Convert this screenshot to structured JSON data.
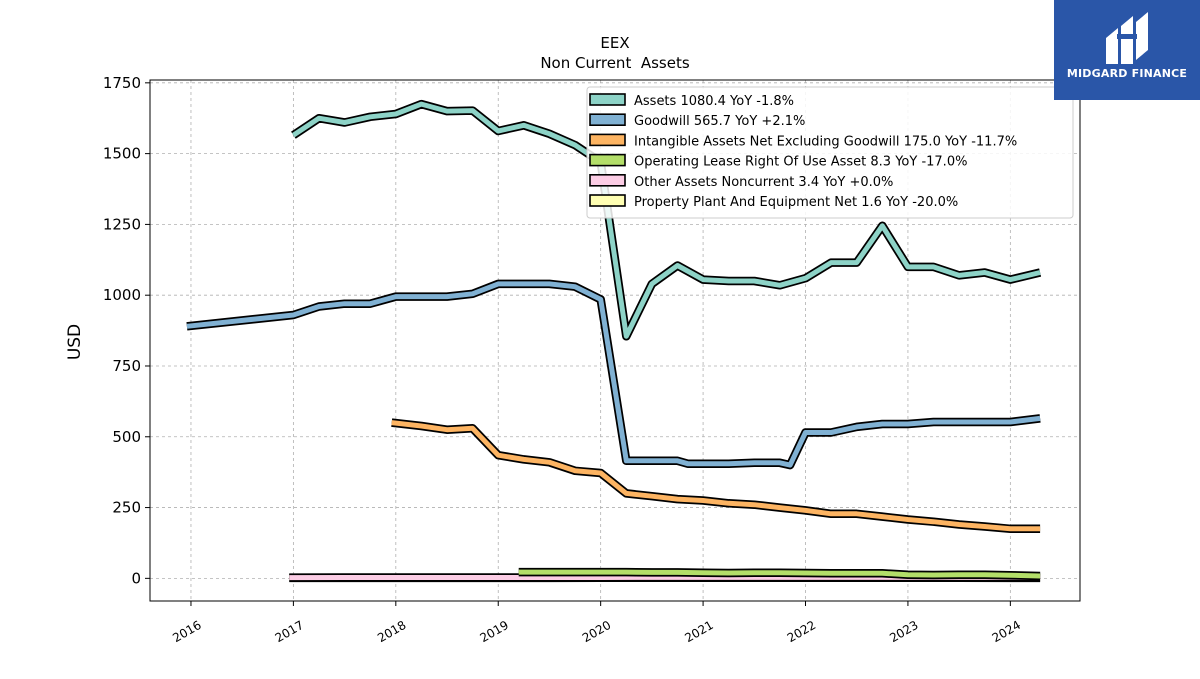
{
  "chart_data": {
    "type": "line",
    "title": "EEX",
    "subtitle": "Non Current  Assets",
    "ylabel": "USD",
    "xlabel": "",
    "ylim": [
      -80,
      1760
    ],
    "xlim": [
      2015.6,
      2024.68
    ],
    "yticks": [
      0,
      250,
      500,
      750,
      1000,
      1250,
      1500,
      1750
    ],
    "ytick_labels": [
      "0",
      "250",
      "500",
      "750",
      "1000",
      "1250",
      "1500",
      "1750"
    ],
    "xticks": [
      2016,
      2017,
      2018,
      2019,
      2020,
      2021,
      2022,
      2023,
      2024
    ],
    "xtick_labels": [
      "2016",
      "2017",
      "2018",
      "2019",
      "2020",
      "2021",
      "2022",
      "2023",
      "2024"
    ],
    "grid": true,
    "legend_position": "top-right",
    "series": [
      {
        "name": "Assets",
        "legend": "Assets  1080.4 YoY -1.8%",
        "color": "#8dd3c7",
        "x": [
          2017.0,
          2017.25,
          2017.5,
          2017.75,
          2018.0,
          2018.25,
          2018.5,
          2018.75,
          2019.0,
          2019.25,
          2019.5,
          2019.75,
          2020.0,
          2020.25,
          2020.5,
          2020.75,
          2021.0,
          2021.25,
          2021.5,
          2021.75,
          2022.0,
          2022.25,
          2022.5,
          2022.75,
          2023.0,
          2023.25,
          2023.5,
          2023.75,
          2024.0,
          2024.29
        ],
        "y": [
          1565,
          1625,
          1610,
          1630,
          1640,
          1675,
          1650,
          1652,
          1580,
          1600,
          1570,
          1530,
          1470,
          855,
          1040,
          1105,
          1055,
          1050,
          1050,
          1035,
          1060,
          1115,
          1115,
          1245,
          1100,
          1100,
          1070,
          1080,
          1055,
          1080
        ]
      },
      {
        "name": "Goodwill",
        "legend": "Goodwill  565.7 YoY +2.1%",
        "color": "#80b1d3",
        "x": [
          2015.96,
          2017.0,
          2017.25,
          2017.5,
          2017.75,
          2018.0,
          2018.25,
          2018.5,
          2018.75,
          2019.0,
          2019.25,
          2019.5,
          2019.75,
          2020.0,
          2020.25,
          2020.5,
          2020.75,
          2020.85,
          2021.0,
          2021.25,
          2021.5,
          2021.75,
          2021.85,
          2022.0,
          2022.25,
          2022.5,
          2022.75,
          2023.0,
          2023.25,
          2023.5,
          2023.75,
          2024.0,
          2024.29
        ],
        "y": [
          890,
          930,
          960,
          970,
          970,
          995,
          995,
          995,
          1005,
          1040,
          1040,
          1040,
          1030,
          985,
          415,
          415,
          415,
          405,
          405,
          405,
          408,
          408,
          400,
          515,
          515,
          535,
          545,
          545,
          552,
          552,
          552,
          552,
          565
        ]
      },
      {
        "name": "Intangible Assets Net Excluding Goodwill",
        "legend": "Intangible Assets Net Excluding Goodwill  175.0 YoY -11.7%",
        "color": "#fdb462",
        "x": [
          2017.96,
          2018.25,
          2018.5,
          2018.75,
          2019.0,
          2019.25,
          2019.5,
          2019.75,
          2020.0,
          2020.25,
          2020.5,
          2020.75,
          2021.0,
          2021.25,
          2021.5,
          2021.75,
          2022.0,
          2022.25,
          2022.5,
          2022.75,
          2023.0,
          2023.25,
          2023.5,
          2023.75,
          2024.0,
          2024.29
        ],
        "y": [
          550,
          538,
          525,
          530,
          435,
          420,
          410,
          380,
          372,
          300,
          290,
          280,
          275,
          265,
          260,
          250,
          240,
          228,
          228,
          218,
          208,
          200,
          190,
          183,
          175,
          175
        ]
      },
      {
        "name": "Operating Lease Right Of Use Asset",
        "legend": "Operating Lease Right Of Use Asset  8.3 YoY -17.0%",
        "color": "#b3de69",
        "x": [
          2019.2,
          2019.25,
          2019.5,
          2019.75,
          2020.0,
          2020.25,
          2020.5,
          2020.75,
          2021.0,
          2021.25,
          2021.5,
          2021.75,
          2022.0,
          2022.25,
          2022.5,
          2022.75,
          2023.0,
          2023.25,
          2023.5,
          2023.75,
          2024.0,
          2024.29
        ],
        "y": [
          22,
          22,
          22,
          22,
          22,
          22,
          21,
          21,
          20,
          19,
          20,
          20,
          19,
          18,
          18,
          18,
          13,
          12,
          13,
          13,
          11,
          8.3
        ]
      },
      {
        "name": "Other Assets Noncurrent",
        "legend": "Other Assets Noncurrent  3.4 YoY +0.0%",
        "color": "#fccde5",
        "x": [
          2016.96,
          2017.5,
          2018.0,
          2018.5,
          2019.0,
          2019.5,
          2020.0,
          2020.5,
          2021.0,
          2021.5,
          2022.0,
          2022.5,
          2023.0,
          2023.5,
          2024.0,
          2024.29
        ],
        "y": [
          2.5,
          3,
          3,
          3,
          3,
          3,
          3,
          3.5,
          3.5,
          3.5,
          3.5,
          3.4,
          3.4,
          3.4,
          3.4,
          3.4
        ]
      },
      {
        "name": "Property Plant And Equipment Net",
        "legend": "Property Plant And Equipment Net  1.6 YoY -20.0%",
        "color": "#ffffb3",
        "x": [
          2016.96,
          2017.5,
          2018.0,
          2018.5,
          2019.0,
          2019.5,
          2020.0,
          2020.5,
          2021.0,
          2021.5,
          2022.0,
          2022.5,
          2023.0,
          2023.5,
          2024.0,
          2024.29
        ],
        "y": [
          1.5,
          1.5,
          1.5,
          1.5,
          1.5,
          1.5,
          2,
          2,
          2,
          2,
          2,
          2,
          1.8,
          1.8,
          1.6,
          1.6
        ]
      }
    ]
  },
  "logo": {
    "text": "MIDGARD FINANCE",
    "background": "#2a56a8"
  }
}
